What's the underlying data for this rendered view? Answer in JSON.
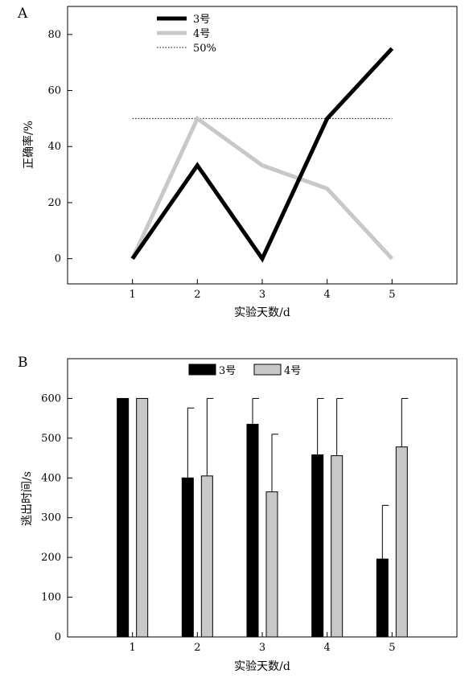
{
  "chart_data": [
    {
      "panel_label": "A",
      "type": "line",
      "xlabel": "实验天数/d",
      "ylabel": "正确率/%",
      "ylim": [
        -9,
        90
      ],
      "xlim": [
        0,
        6
      ],
      "x_ticks": [
        "1",
        "2",
        "3",
        "4",
        "5"
      ],
      "y_ticks": [
        "0",
        "20",
        "40",
        "60",
        "80"
      ],
      "x": [
        1,
        2,
        3,
        4,
        5
      ],
      "series": [
        {
          "name": "3号",
          "values": [
            0,
            33.3,
            0,
            50,
            75
          ],
          "color": "#000000",
          "style": "solid-thick"
        },
        {
          "name": "4号",
          "values": [
            0,
            50,
            33.3,
            25,
            0
          ],
          "color": "#c8c8c8",
          "style": "solid-thick"
        }
      ],
      "reference_line": {
        "name": "50%",
        "value": 50,
        "x_range": [
          1,
          5
        ],
        "style": "dotted"
      },
      "legend": "top-left",
      "grid": false
    },
    {
      "panel_label": "B",
      "type": "bar",
      "xlabel": "实验天数/d",
      "ylabel": "逃出时间/s",
      "ylim": [
        0,
        700
      ],
      "xlim": [
        0,
        6
      ],
      "categories": [
        "1",
        "2",
        "3",
        "4",
        "5"
      ],
      "y_ticks": [
        "0",
        "100",
        "200",
        "300",
        "400",
        "500",
        "600"
      ],
      "series": [
        {
          "name": "3号",
          "values": [
            600,
            400,
            535,
            458,
            196
          ],
          "errors": [
            0,
            176,
            65,
            142,
            135
          ],
          "color": "#000000"
        },
        {
          "name": "4号",
          "values": [
            600,
            405,
            365,
            456,
            478
          ],
          "errors": [
            0,
            195,
            145,
            144,
            122
          ],
          "color": "#c8c8c8"
        }
      ],
      "legend": "top-center",
      "grid": false
    }
  ]
}
